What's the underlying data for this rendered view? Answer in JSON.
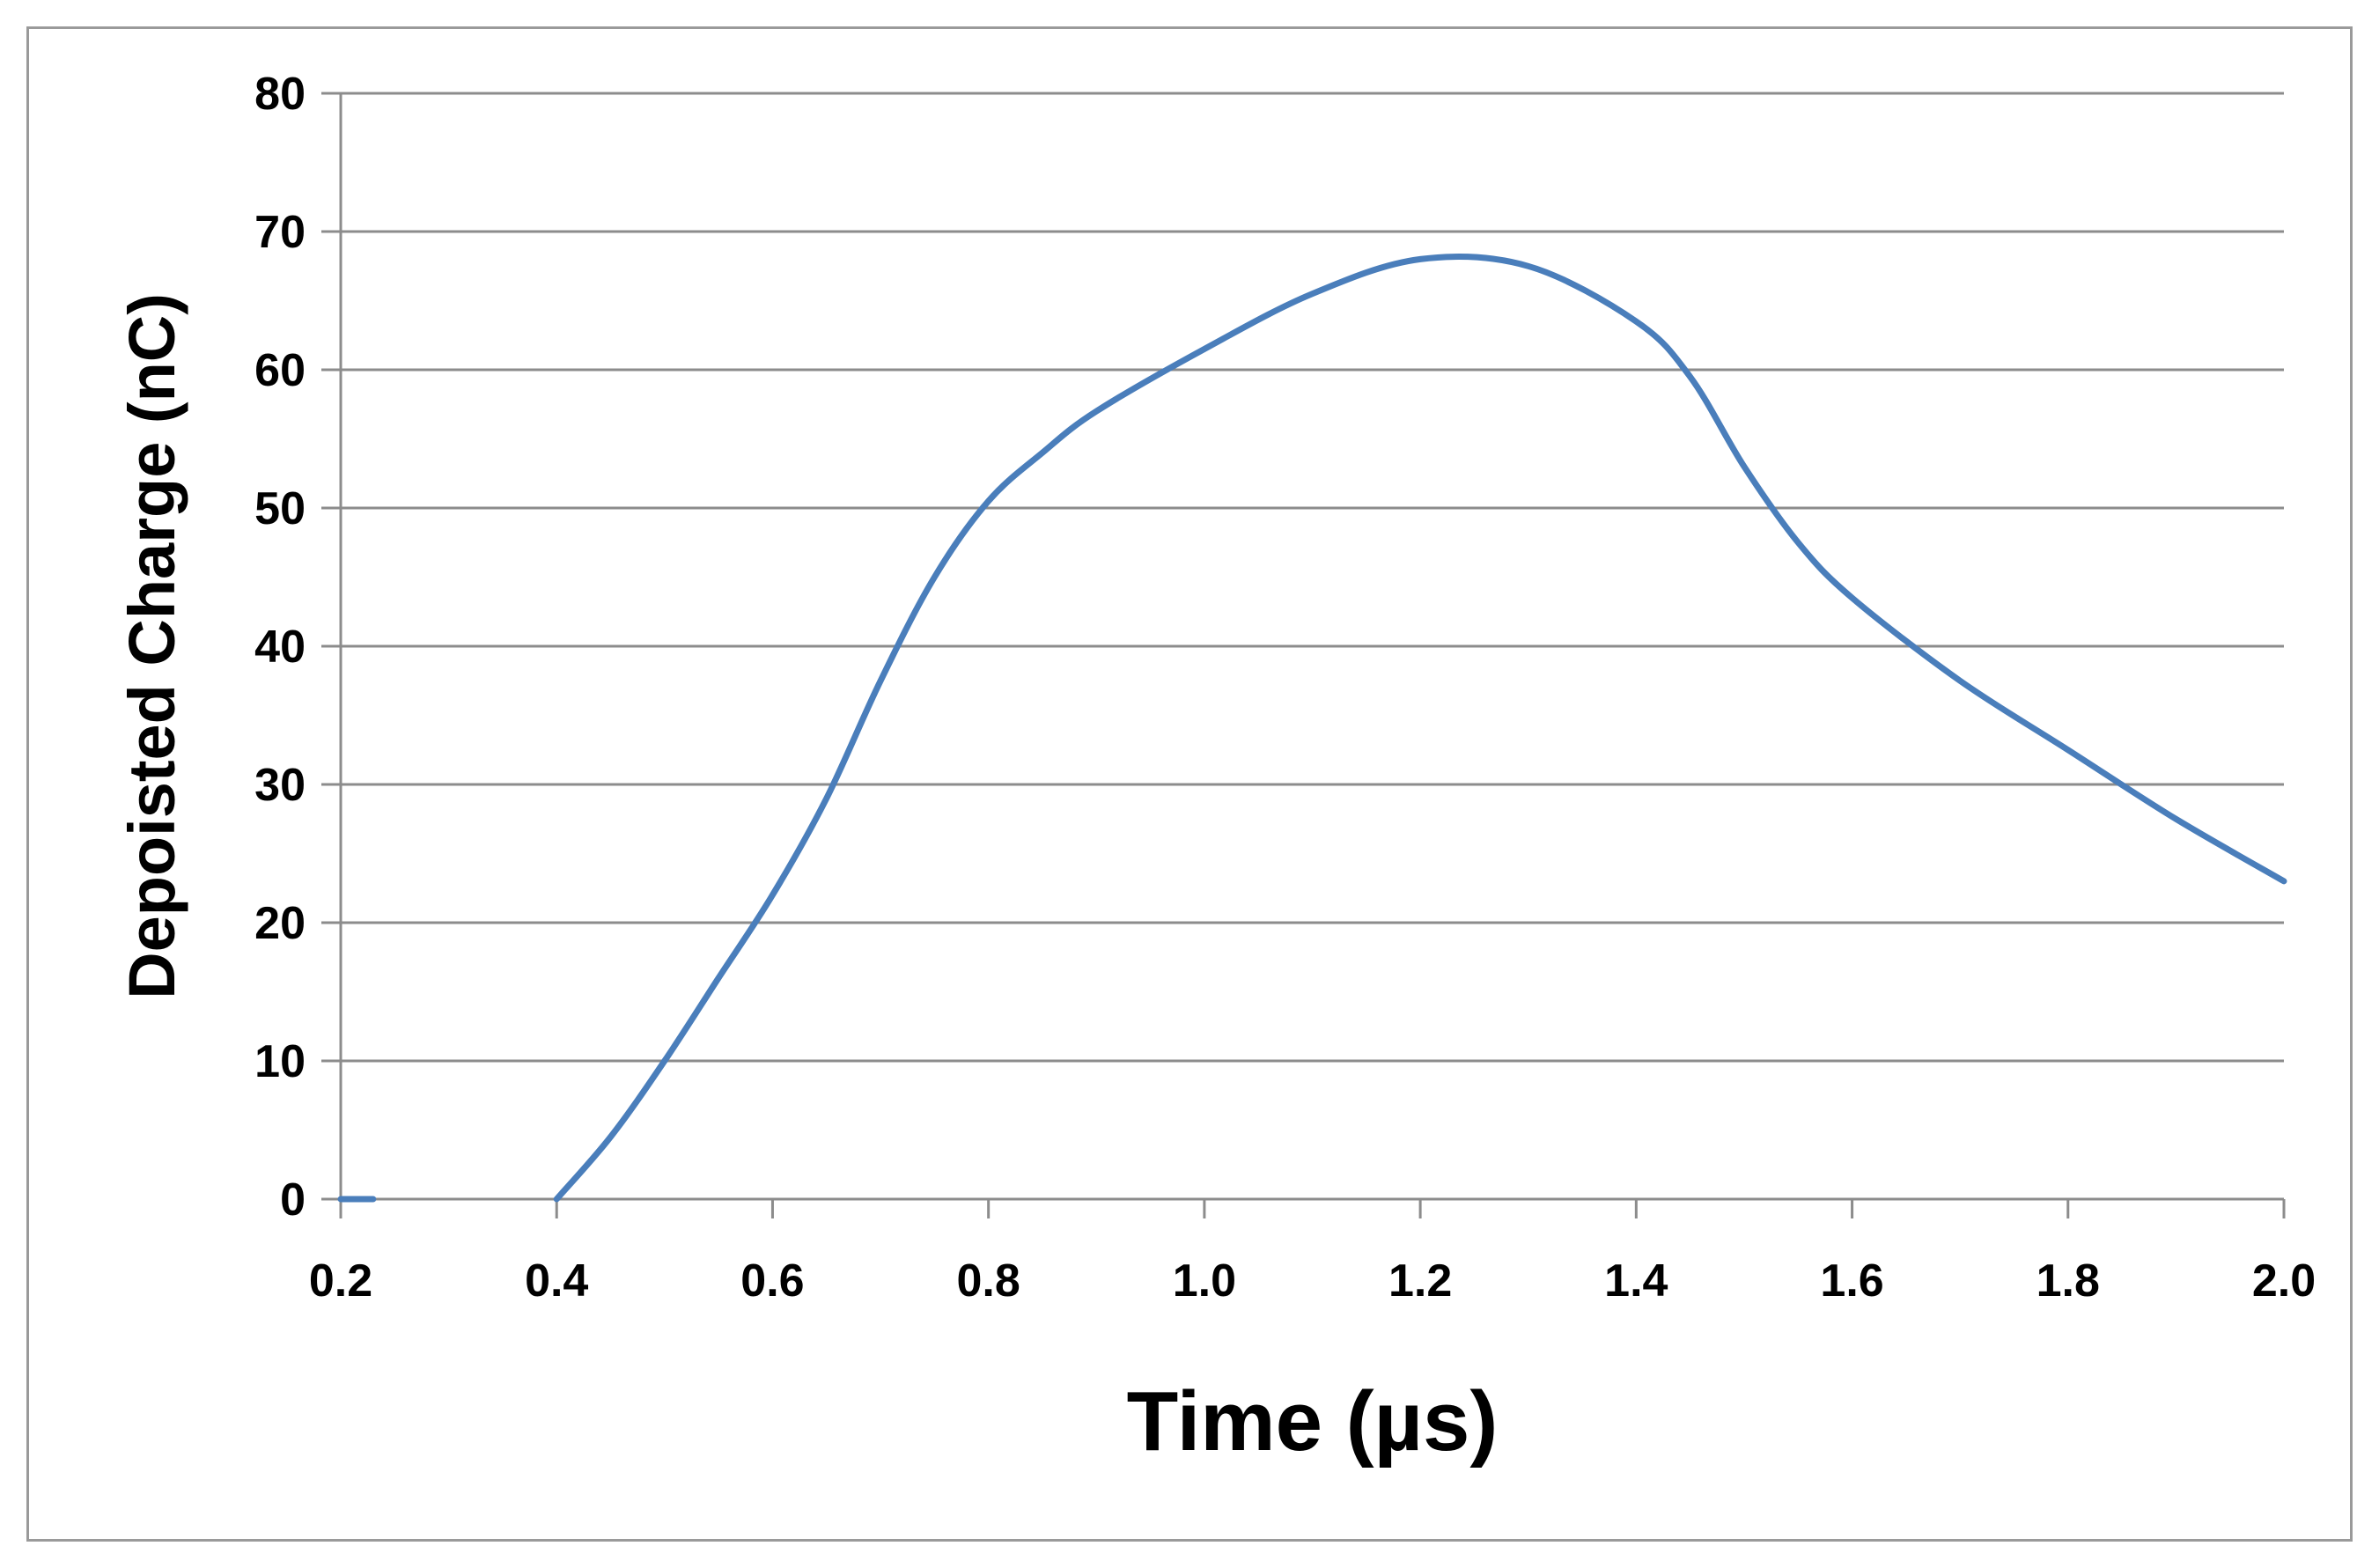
{
  "chart_data": {
    "type": "line",
    "title": "",
    "xlabel": "Time (µs)",
    "ylabel": "Depoisted Charge (nC)",
    "xlim": [
      0.2,
      2.0
    ],
    "ylim": [
      0,
      80
    ],
    "x_ticks": [
      "0.2",
      "0.4",
      "0.6",
      "0.8",
      "1.0",
      "1.2",
      "1.4",
      "1.6",
      "1.8",
      "2.0"
    ],
    "y_ticks": [
      "0",
      "10",
      "20",
      "30",
      "40",
      "50",
      "60",
      "70",
      "80"
    ],
    "grid": "horizontal",
    "line_color": "#4a7ebb",
    "grid_color": "#8c8c8c",
    "series": [
      {
        "x": [
          0.2,
          0.23
        ],
        "y": [
          0,
          0
        ]
      },
      {
        "x": [
          0.4,
          0.45,
          0.5,
          0.55,
          0.6,
          0.65,
          0.7,
          0.75,
          0.8,
          0.85,
          0.9,
          1.0,
          1.1,
          1.2,
          1.3,
          1.4,
          1.45,
          1.5,
          1.55,
          1.6,
          1.7,
          1.8,
          1.9,
          2.0
        ],
        "y": [
          0,
          4.5,
          10,
          16,
          22,
          29,
          37.5,
          45,
          50.5,
          54,
          57,
          61.5,
          65.5,
          68,
          67.5,
          63.5,
          59.5,
          53,
          47.5,
          43.5,
          37.5,
          32.5,
          27.5,
          23
        ]
      }
    ]
  }
}
